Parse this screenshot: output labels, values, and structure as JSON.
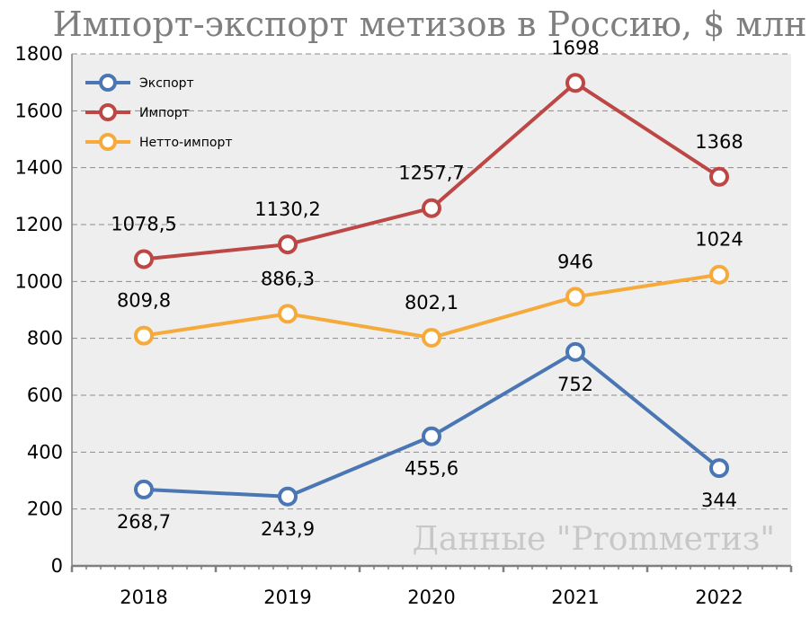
{
  "chart_data": {
    "type": "line",
    "title": "Импорт-экспорт метизов в Россию, $ млн",
    "watermark": "Данные \"Promметиз\"",
    "categories": [
      "2018",
      "2019",
      "2020",
      "2021",
      "2022"
    ],
    "y_ticks": [
      "0",
      "200",
      "400",
      "600",
      "800",
      "1000",
      "1200",
      "1400",
      "1600",
      "1800"
    ],
    "ylim": [
      0,
      1800
    ],
    "grid": "horizontal-dashed",
    "legend_position": "top-left",
    "series": [
      {
        "name": "Экспорт",
        "color": "#4a76b4",
        "values": [
          268.7,
          243.9,
          455.6,
          752,
          344
        ],
        "labels": [
          "268,7",
          "243,9",
          "455,6",
          "752",
          "344"
        ],
        "label_side": "below"
      },
      {
        "name": "Импорт",
        "color": "#bc4744",
        "values": [
          1078.5,
          1130.2,
          1257.7,
          1698,
          1368
        ],
        "labels": [
          "1078,5",
          "1130,2",
          "1257,7",
          "1698",
          "1368"
        ],
        "label_side": "above"
      },
      {
        "name": "Нетто-импорт",
        "color": "#f5aa3a",
        "values": [
          809.8,
          886.3,
          802.1,
          946,
          1024
        ],
        "labels": [
          "809,8",
          "886,3",
          "802,1",
          "946",
          "1024"
        ],
        "label_side": "above"
      }
    ]
  }
}
